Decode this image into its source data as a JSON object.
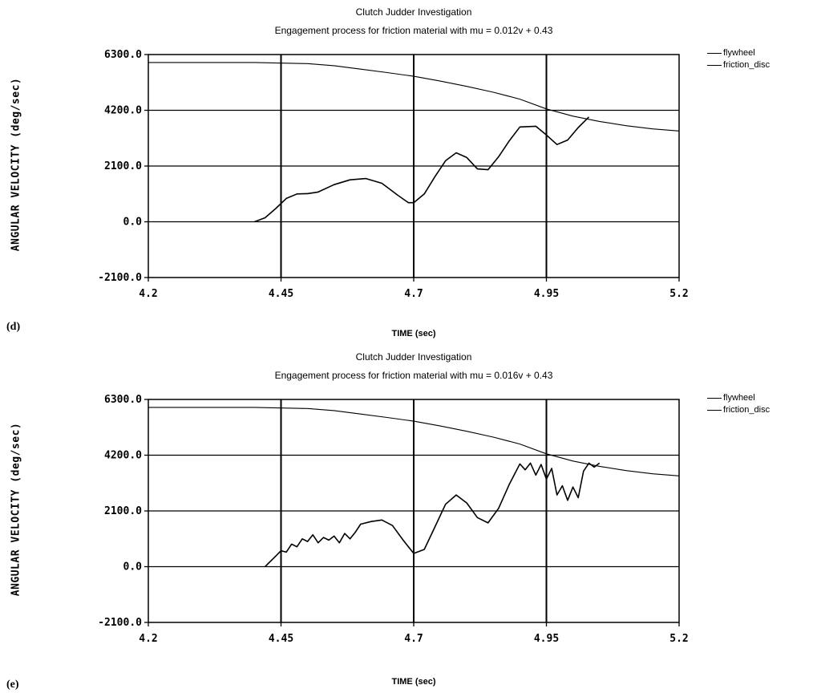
{
  "chart_data": [
    {
      "type": "line",
      "panel_label": "(d)",
      "title": "Clutch Judder Investigation",
      "subtitle": "Engagement process for friction material with  mu = 0.012v + 0.43",
      "xlabel": "TIME (sec)",
      "ylabel": "ANGULAR VELOCITY (deg/sec)",
      "xlim": [
        4.2,
        5.2
      ],
      "ylim": [
        -2100,
        6300
      ],
      "x_ticks": [
        "4.2",
        "4.45",
        "4.7",
        "4.95",
        "5.2"
      ],
      "y_ticks": [
        "6300.0",
        "4200.0",
        "2100.0",
        "0.0",
        "-2100.0"
      ],
      "grid": true,
      "legend_position": "top-right, outside plot",
      "series": [
        {
          "name": "flywheel",
          "x": [
            4.2,
            4.3,
            4.4,
            4.5,
            4.55,
            4.6,
            4.65,
            4.7,
            4.75,
            4.8,
            4.85,
            4.9,
            4.95,
            5.0,
            5.05,
            5.1,
            5.15,
            5.2
          ],
          "y": [
            6000,
            6000,
            6000,
            5960,
            5880,
            5750,
            5620,
            5480,
            5300,
            5100,
            4880,
            4620,
            4250,
            3980,
            3780,
            3620,
            3500,
            3420
          ]
        },
        {
          "name": "friction_disc",
          "x": [
            4.4,
            4.42,
            4.44,
            4.46,
            4.48,
            4.5,
            4.52,
            4.55,
            4.58,
            4.61,
            4.64,
            4.67,
            4.69,
            4.7,
            4.72,
            4.74,
            4.76,
            4.78,
            4.8,
            4.82,
            4.84,
            4.86,
            4.88,
            4.9,
            4.93,
            4.95,
            4.97,
            4.99,
            5.01,
            5.03
          ],
          "y": [
            0,
            150,
            500,
            880,
            1050,
            1060,
            1120,
            1400,
            1580,
            1630,
            1450,
            1000,
            720,
            720,
            1050,
            1700,
            2300,
            2600,
            2420,
            1990,
            1960,
            2450,
            3050,
            3570,
            3600,
            3270,
            2910,
            3080,
            3550,
            3950
          ]
        }
      ]
    },
    {
      "type": "line",
      "panel_label": "(e)",
      "title": "Clutch Judder Investigation",
      "subtitle": "Engagement process for friction material with  mu = 0.016v + 0.43",
      "xlabel": "TIME (sec)",
      "ylabel": "ANGULAR VELOCITY (deg/sec)",
      "xlim": [
        4.2,
        5.2
      ],
      "ylim": [
        -2100,
        6300
      ],
      "x_ticks": [
        "4.2",
        "4.45",
        "4.7",
        "4.95",
        "5.2"
      ],
      "y_ticks": [
        "6300.0",
        "4200.0",
        "2100.0",
        "0.0",
        "-2100.0"
      ],
      "grid": true,
      "legend_position": "top-right, outside plot",
      "series": [
        {
          "name": "flywheel",
          "x": [
            4.2,
            4.3,
            4.4,
            4.5,
            4.55,
            4.6,
            4.65,
            4.7,
            4.75,
            4.8,
            4.85,
            4.9,
            4.95,
            5.0,
            5.05,
            5.1,
            5.15,
            5.2
          ],
          "y": [
            6000,
            6000,
            6000,
            5960,
            5880,
            5750,
            5620,
            5480,
            5300,
            5100,
            4880,
            4620,
            4250,
            3980,
            3780,
            3620,
            3500,
            3420
          ]
        },
        {
          "name": "friction_disc",
          "x": [
            4.42,
            4.44,
            4.45,
            4.46,
            4.47,
            4.48,
            4.49,
            4.5,
            4.51,
            4.52,
            4.53,
            4.54,
            4.55,
            4.56,
            4.57,
            4.58,
            4.59,
            4.6,
            4.62,
            4.64,
            4.66,
            4.68,
            4.7,
            4.72,
            4.74,
            4.76,
            4.78,
            4.8,
            4.82,
            4.84,
            4.86,
            4.88,
            4.9,
            4.91,
            4.92,
            4.93,
            4.94,
            4.95,
            4.96,
            4.97,
            4.98,
            4.99,
            5.0,
            5.01,
            5.02,
            5.03,
            5.04,
            5.05
          ],
          "y": [
            0,
            400,
            600,
            550,
            850,
            750,
            1050,
            950,
            1200,
            900,
            1100,
            1000,
            1150,
            900,
            1250,
            1050,
            1300,
            1600,
            1700,
            1760,
            1550,
            1000,
            500,
            650,
            1500,
            2350,
            2700,
            2400,
            1850,
            1650,
            2200,
            3100,
            3870,
            3650,
            3900,
            3450,
            3850,
            3300,
            3700,
            2700,
            3050,
            2500,
            3000,
            2600,
            3600,
            3900,
            3750,
            3900
          ]
        }
      ]
    }
  ]
}
